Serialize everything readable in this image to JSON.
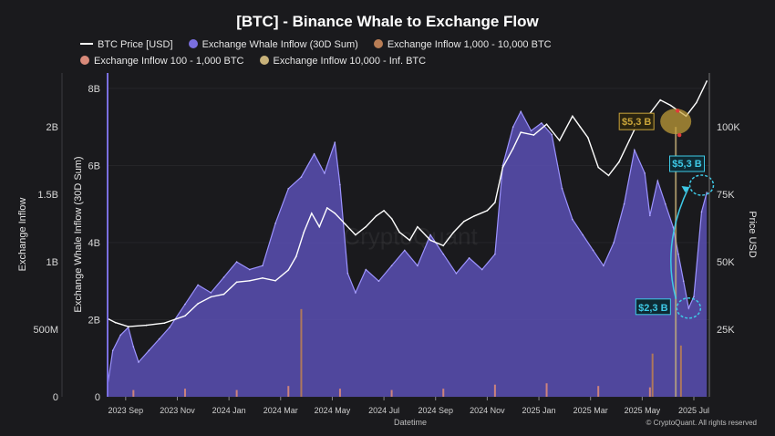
{
  "colors": {
    "background": "#1a1a1d",
    "btc_price": "#ffffff",
    "whale_inflow": "#7a6fe0",
    "whale_inflow_fill": "#5a50b4",
    "inflow_1k_10k": "#b87d55",
    "inflow_100_1k": "#d98a7a",
    "inflow_10k_inf": "#c8b27a",
    "annotation_gold": "#c9a43a",
    "annotation_cyan": "#3ec9e6",
    "grid": "#2c2c31"
  },
  "chart_data": {
    "type": "area",
    "title": "[BTC] - Binance Whale to Exchange Flow",
    "xlabel": "Datetime",
    "ylabel_left": "Exchange Inflow",
    "ylabel_inner": "Exchange Whale Inflow (30D Sum)",
    "ylabel_right": "Price USD",
    "legend_position": "top",
    "grid": true,
    "x_ticks": [
      "2023 Sep",
      "2023 Nov",
      "2024 Jan",
      "2024 Mar",
      "2024 May",
      "2024 Jul",
      "2024 Sep",
      "2024 Nov",
      "2025 Jan",
      "2025 Mar",
      "2025 May",
      "2025 Jul"
    ],
    "left_axis_ticks": [
      "0",
      "500M",
      "1B",
      "1.5B",
      "2B"
    ],
    "inner_axis_ticks": [
      "0",
      "2B",
      "4B",
      "6B",
      "8B"
    ],
    "right_axis_ticks": [
      "25K",
      "50K",
      "75K",
      "100K"
    ],
    "ylim_left": [
      0,
      2.4
    ],
    "ylim_inner": [
      0,
      8.4
    ],
    "ylim_right": [
      0,
      120000
    ],
    "x_range_months": [
      0,
      23.3
    ],
    "series": [
      {
        "name": "BTC Price [USD]",
        "type": "line",
        "axis": "right",
        "x": [
          0,
          0.3,
          0.8,
          1.5,
          2.2,
          3.0,
          3.5,
          4.0,
          4.5,
          5.0,
          5.5,
          6.0,
          6.5,
          7.0,
          7.3,
          7.6,
          7.9,
          8.2,
          8.5,
          8.8,
          9.2,
          9.6,
          10.0,
          10.4,
          10.7,
          11.0,
          11.3,
          11.7,
          12.0,
          12.5,
          13.0,
          13.4,
          13.8,
          14.2,
          14.7,
          15.0,
          15.3,
          15.7,
          16.0,
          16.5,
          17.0,
          17.5,
          18.0,
          18.3,
          18.6,
          19.0,
          19.4,
          19.8,
          20.2,
          20.6,
          21.0,
          21.4,
          21.8,
          22.1,
          22.4,
          22.8,
          23.2
        ],
        "y": [
          29000,
          27500,
          26000,
          26500,
          27300,
          30000,
          34500,
          37000,
          38000,
          42500,
          43000,
          44000,
          43000,
          47000,
          52000,
          61000,
          68000,
          63000,
          70000,
          68000,
          64000,
          60000,
          63000,
          67000,
          69000,
          66000,
          61000,
          58000,
          63000,
          58000,
          56000,
          61000,
          65000,
          67000,
          69000,
          72000,
          85000,
          92000,
          98000,
          97000,
          101000,
          95000,
          104000,
          100000,
          96000,
          85000,
          82000,
          87000,
          95000,
          103000,
          105000,
          110000,
          108000,
          106000,
          104000,
          109000,
          117000
        ]
      },
      {
        "name": "Exchange Whale Inflow (30D Sum)",
        "type": "area",
        "axis": "inner",
        "x": [
          0,
          0.2,
          0.5,
          0.8,
          1.0,
          1.2,
          1.6,
          2.0,
          2.4,
          3.0,
          3.5,
          4.0,
          4.5,
          5.0,
          5.5,
          6.0,
          6.5,
          7.0,
          7.5,
          8.0,
          8.4,
          8.8,
          9.0,
          9.3,
          9.6,
          10.0,
          10.5,
          11.0,
          11.5,
          12.0,
          12.5,
          13.0,
          13.5,
          14.0,
          14.5,
          15.0,
          15.3,
          15.7,
          16.0,
          16.4,
          16.8,
          17.2,
          17.6,
          18.0,
          18.4,
          18.8,
          19.2,
          19.6,
          20.0,
          20.4,
          20.8,
          21.0,
          21.3,
          21.6,
          21.9,
          22.1,
          22.3,
          22.5,
          22.7,
          23.0,
          23.2
        ],
        "y": [
          0.3,
          1.2,
          1.6,
          1.8,
          1.3,
          0.9,
          1.2,
          1.5,
          1.8,
          2.4,
          2.9,
          2.7,
          3.1,
          3.5,
          3.3,
          3.4,
          4.5,
          5.4,
          5.7,
          6.3,
          5.8,
          6.6,
          5.5,
          3.2,
          2.7,
          3.3,
          3.0,
          3.4,
          3.8,
          3.4,
          4.2,
          3.7,
          3.2,
          3.6,
          3.3,
          3.7,
          6.0,
          7.0,
          7.4,
          6.9,
          7.1,
          6.8,
          5.4,
          4.6,
          4.2,
          3.8,
          3.4,
          4.0,
          5.0,
          6.4,
          5.8,
          4.7,
          5.6,
          5.0,
          4.4,
          3.7,
          3.0,
          2.3,
          2.6,
          4.8,
          5.3
        ]
      },
      {
        "name": "Exchange Inflow 1,000 - 10,000 BTC",
        "type": "bar",
        "axis": "left",
        "x": [
          7.5,
          21.1,
          22.2
        ],
        "y": [
          0.65,
          0.32,
          0.38
        ]
      },
      {
        "name": "Exchange Inflow 100 - 1,000 BTC",
        "type": "bar",
        "axis": "left",
        "x": [
          1.0,
          3.0,
          5.0,
          7.0,
          9.0,
          11.0,
          13.0,
          15.0,
          17.0,
          19.0,
          21.0
        ],
        "y": [
          0.05,
          0.06,
          0.05,
          0.08,
          0.06,
          0.05,
          0.06,
          0.09,
          0.1,
          0.08,
          0.07
        ]
      },
      {
        "name": "Exchange Inflow 10,000 - Inf. BTC",
        "type": "bar",
        "axis": "left",
        "x": [
          22.0
        ],
        "y": [
          2.0
        ]
      }
    ],
    "annotations": [
      {
        "text": "$5,3 B",
        "color": "gold"
      },
      {
        "text": "$5,3 B",
        "color": "cyan"
      },
      {
        "text": "$2,3 B",
        "color": "cyan"
      }
    ],
    "watermark": "CryptoQuant",
    "footer": "© CryptoQuant. All rights reserved"
  }
}
